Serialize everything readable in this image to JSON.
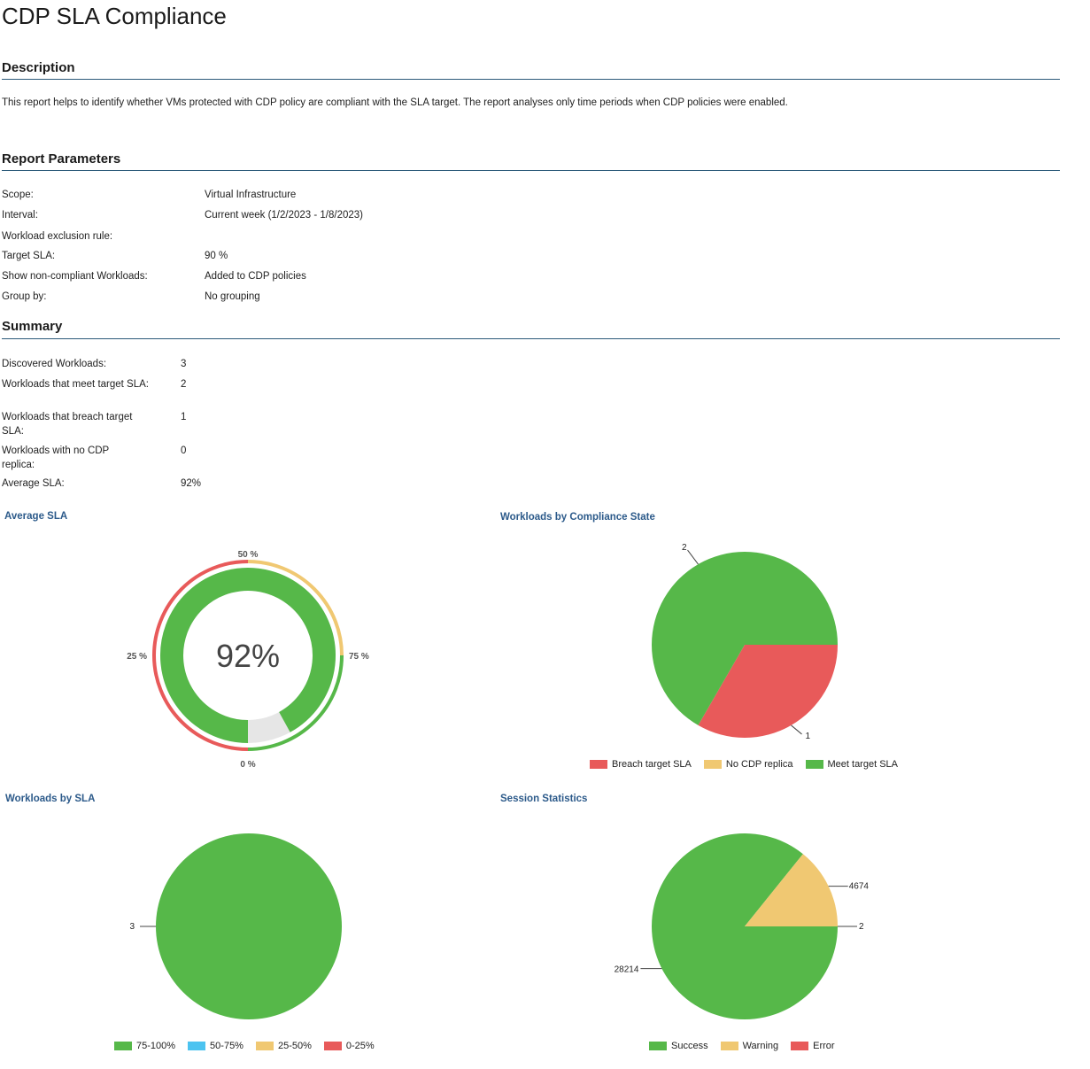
{
  "title": "CDP SLA Compliance",
  "description": {
    "heading": "Description",
    "text": "This report helps to identify whether VMs protected with CDP policy are compliant with the SLA target. The report analyses only time periods when CDP policies were enabled."
  },
  "parameters": {
    "heading": "Report Parameters",
    "rows": [
      {
        "label": "Scope:",
        "value": "Virtual Infrastructure"
      },
      {
        "label": "Interval:",
        "value": "Current week (1/2/2023 - 1/8/2023)"
      },
      {
        "label": "Workload exclusion rule:",
        "value": ""
      },
      {
        "label": "Target SLA:",
        "value": "90 %"
      },
      {
        "label": "Show non-compliant Workloads:",
        "value": "Added to CDP policies"
      },
      {
        "label": "Group by:",
        "value": "No grouping"
      }
    ]
  },
  "summary": {
    "heading": "Summary",
    "rows": [
      {
        "label": "Discovered Workloads:",
        "value": "3"
      },
      {
        "label": "Workloads that meet target SLA:",
        "value": "2"
      },
      {
        "label": "Workloads that breach target SLA:",
        "value": "1"
      },
      {
        "label": "Workloads with no CDP replica:",
        "value": "0"
      },
      {
        "label": "Average SLA:",
        "value": "92%"
      }
    ]
  },
  "colors": {
    "green": "#56b849",
    "red": "#e85a5a",
    "yellow": "#f0c872",
    "blue": "#4cc3f0",
    "gray": "#e6e6e6"
  },
  "chart_data": [
    {
      "type": "gauge",
      "title": "Average SLA",
      "value": 92,
      "center_label": "92%",
      "ticks": [
        "0 %",
        "25 %",
        "50 %",
        "75 %"
      ],
      "bands": [
        {
          "range": [
            0,
            50
          ],
          "color": "red"
        },
        {
          "range": [
            50,
            75
          ],
          "color": "yellow"
        },
        {
          "range": [
            75,
            100
          ],
          "color": "green"
        }
      ]
    },
    {
      "type": "pie",
      "title": "Workloads by Compliance State",
      "slices": [
        {
          "label": "Breach target SLA",
          "value": 1,
          "color": "red"
        },
        {
          "label": "No CDP replica",
          "value": 0,
          "color": "yellow"
        },
        {
          "label": "Meet target SLA",
          "value": 2,
          "color": "green"
        }
      ],
      "legend": [
        "Breach target SLA",
        "No CDP replica",
        "Meet target SLA"
      ]
    },
    {
      "type": "pie",
      "title": "Workloads by SLA",
      "slices": [
        {
          "label": "75-100%",
          "value": 3,
          "color": "green"
        },
        {
          "label": "50-75%",
          "value": 0,
          "color": "blue"
        },
        {
          "label": "25-50%",
          "value": 0,
          "color": "yellow"
        },
        {
          "label": "0-25%",
          "value": 0,
          "color": "red"
        }
      ],
      "legend": [
        "75-100%",
        "50-75%",
        "25-50%",
        "0-25%"
      ]
    },
    {
      "type": "pie",
      "title": "Session Statistics",
      "slices": [
        {
          "label": "Success",
          "value": 28214,
          "color": "green"
        },
        {
          "label": "Warning",
          "value": 4674,
          "color": "yellow"
        },
        {
          "label": "Error",
          "value": 2,
          "color": "red"
        }
      ],
      "legend": [
        "Success",
        "Warning",
        "Error"
      ]
    }
  ]
}
